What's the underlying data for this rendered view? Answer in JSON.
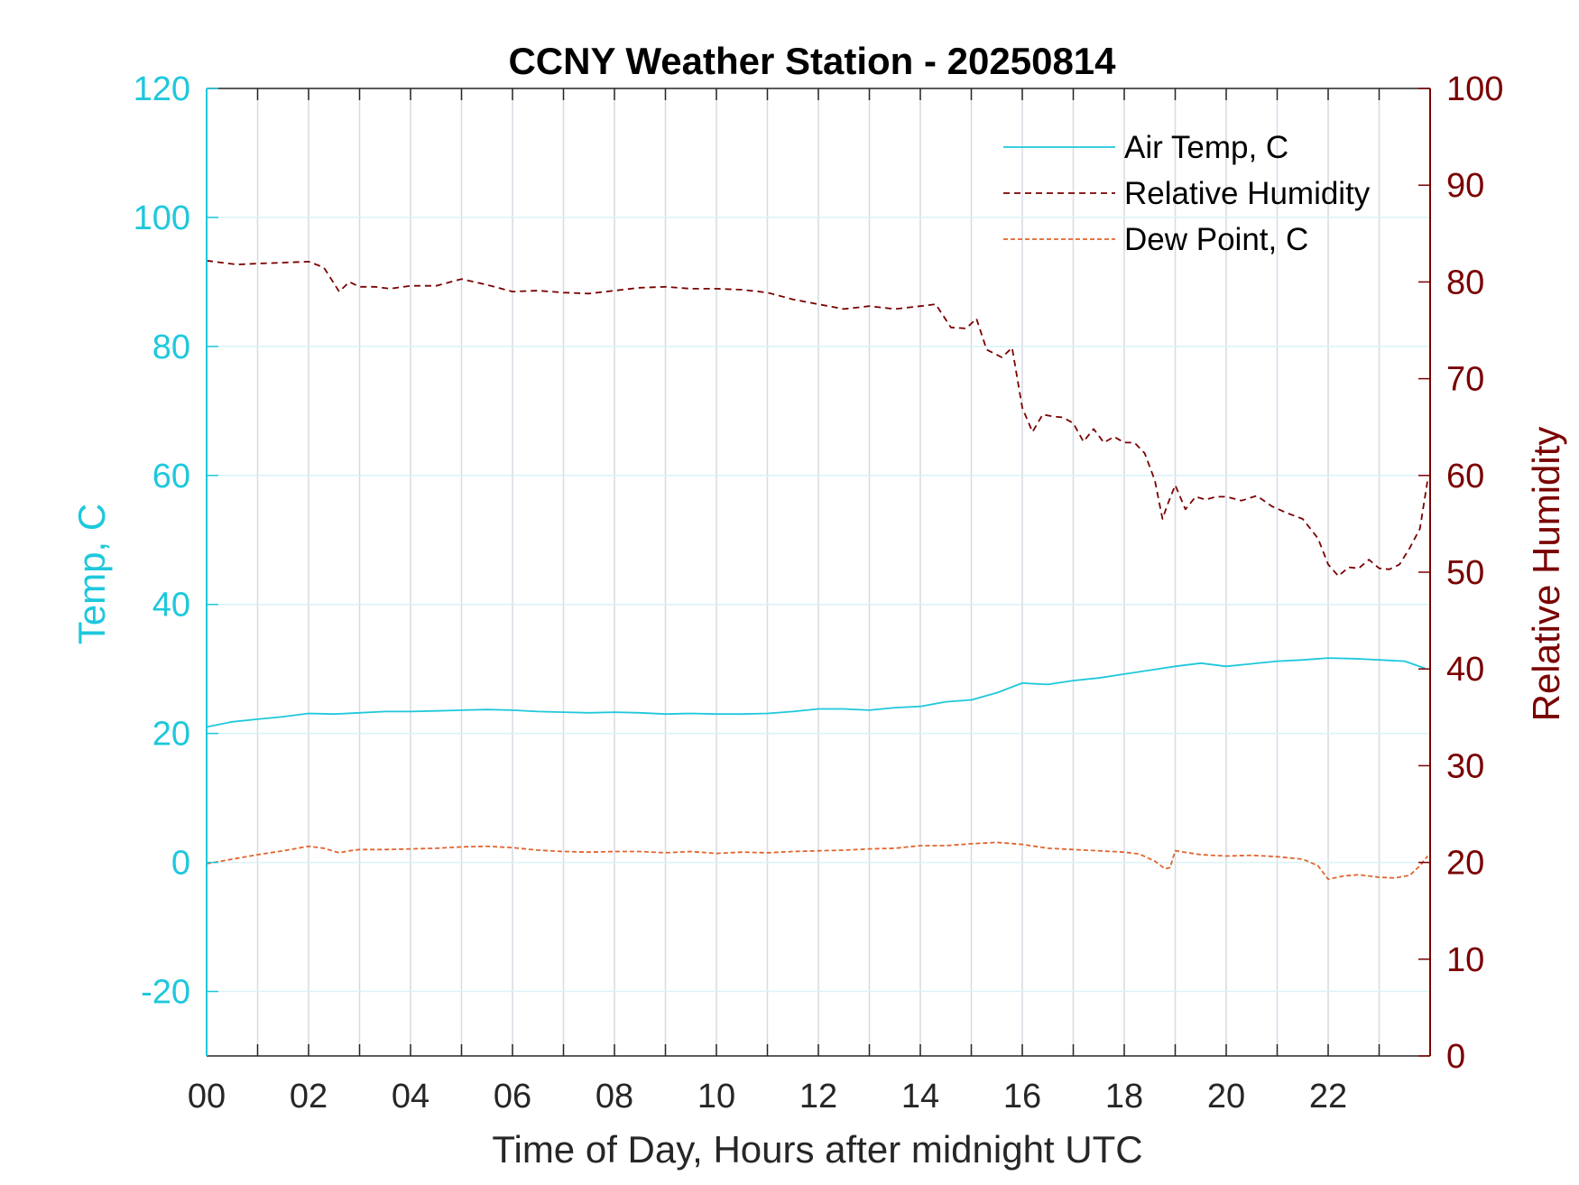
{
  "chart_data": {
    "type": "line",
    "title": "CCNY Weather Station - 20250814",
    "xlabel": "Time of Day, Hours after midnight UTC",
    "ylabel_left": "Temp, C",
    "ylabel_right": "Relative Humidity",
    "xlim": [
      0,
      24
    ],
    "ylim_left": [
      -30,
      120
    ],
    "ylim_right": [
      0,
      100
    ],
    "x_ticks": [
      0,
      2,
      4,
      6,
      8,
      10,
      12,
      14,
      16,
      18,
      20,
      22
    ],
    "x_tick_labels": [
      "00",
      "02",
      "04",
      "06",
      "08",
      "10",
      "12",
      "14",
      "16",
      "18",
      "20",
      "22"
    ],
    "y_left_ticks": [
      -20,
      0,
      20,
      40,
      60,
      80,
      100,
      120
    ],
    "y_left_tick_labels": [
      "-20",
      "0",
      "20",
      "40",
      "60",
      "80",
      "100",
      "120"
    ],
    "y_right_ticks": [
      0,
      10,
      20,
      30,
      40,
      50,
      60,
      70,
      80,
      90,
      100
    ],
    "y_right_tick_labels": [
      "0",
      "10",
      "20",
      "30",
      "40",
      "50",
      "60",
      "70",
      "80",
      "90",
      "100"
    ],
    "grid": true,
    "legend_position": "top-right",
    "colors": {
      "air_temp": "#1ec8dc",
      "humidity": "#7a0000",
      "dew_point": "#e0652e",
      "left_axis": "#1ec8dc",
      "right_axis": "#7a0000"
    },
    "series": [
      {
        "name": "Air Temp, C",
        "axis": "left",
        "x": [
          0,
          0.5,
          1,
          1.5,
          2,
          2.5,
          3,
          3.5,
          4,
          4.5,
          5,
          5.5,
          6,
          6.5,
          7,
          7.5,
          8,
          8.5,
          9,
          9.5,
          10,
          10.5,
          11,
          11.5,
          12,
          12.5,
          13,
          13.5,
          14,
          14.5,
          15,
          15.5,
          16,
          16.5,
          17,
          17.5,
          18,
          18.5,
          19,
          19.5,
          20,
          20.5,
          21,
          21.5,
          22,
          22.5,
          23,
          23.5,
          23.9
        ],
        "y": [
          21.0,
          21.8,
          22.2,
          22.6,
          23.1,
          23.0,
          23.2,
          23.4,
          23.4,
          23.5,
          23.6,
          23.7,
          23.6,
          23.4,
          23.3,
          23.2,
          23.3,
          23.2,
          23.0,
          23.1,
          23.0,
          23.0,
          23.1,
          23.4,
          23.8,
          23.8,
          23.6,
          24.0,
          24.2,
          24.9,
          25.2,
          26.3,
          27.8,
          27.6,
          28.2,
          28.6,
          29.2,
          29.8,
          30.4,
          30.9,
          30.4,
          30.8,
          31.2,
          31.4,
          31.7,
          31.6,
          31.4,
          31.2,
          30.1
        ]
      },
      {
        "name": "Relative Humidity",
        "axis": "right",
        "x": [
          0,
          0.3,
          0.6,
          1,
          1.5,
          2,
          2.3,
          2.6,
          2.8,
          3,
          3.3,
          3.6,
          4,
          4.5,
          5,
          5.5,
          6,
          6.5,
          7,
          7.5,
          8,
          8.5,
          9,
          9.5,
          10,
          10.5,
          11,
          11.5,
          12,
          12.5,
          13,
          13.5,
          14,
          14.3,
          14.6,
          14.9,
          15.1,
          15.3,
          15.6,
          15.8,
          16,
          16.2,
          16.4,
          16.6,
          16.8,
          17,
          17.2,
          17.4,
          17.6,
          17.8,
          18,
          18.2,
          18.4,
          18.6,
          18.75,
          18.85,
          19,
          19.2,
          19.4,
          19.6,
          19.8,
          20,
          20.3,
          20.6,
          20.9,
          21.2,
          21.5,
          21.8,
          22,
          22.2,
          22.4,
          22.6,
          22.8,
          23,
          23.2,
          23.4,
          23.6,
          23.8,
          23.95
        ],
        "y": [
          82.2,
          82.0,
          81.8,
          81.9,
          82.0,
          82.1,
          81.5,
          79.0,
          80.0,
          79.5,
          79.5,
          79.3,
          79.6,
          79.6,
          80.3,
          79.7,
          79.0,
          79.1,
          78.9,
          78.8,
          79.1,
          79.4,
          79.5,
          79.3,
          79.3,
          79.2,
          78.9,
          78.2,
          77.7,
          77.2,
          77.5,
          77.2,
          77.5,
          77.7,
          75.3,
          75.2,
          76.2,
          73.0,
          72.2,
          73.2,
          67.0,
          64.5,
          66.3,
          66.1,
          66.0,
          65.4,
          63.5,
          64.8,
          63.4,
          64.0,
          63.4,
          63.4,
          62.3,
          59.5,
          55.5,
          57.0,
          59.0,
          56.5,
          57.8,
          57.5,
          57.8,
          57.8,
          57.4,
          57.9,
          56.8,
          56.1,
          55.5,
          53.5,
          50.8,
          49.6,
          50.5,
          50.4,
          51.3,
          50.4,
          50.3,
          50.8,
          52.5,
          54.5,
          59.5
        ]
      },
      {
        "name": "Dew Point, C",
        "axis": "left",
        "x": [
          0,
          0.5,
          1,
          1.5,
          2,
          2.3,
          2.6,
          2.8,
          3,
          3.5,
          4,
          4.5,
          5,
          5.5,
          6,
          6.5,
          7,
          7.5,
          8,
          8.5,
          9,
          9.5,
          10,
          10.5,
          11,
          11.5,
          12,
          12.5,
          13,
          13.5,
          14,
          14.5,
          15,
          15.5,
          16,
          16.5,
          17,
          17.5,
          18,
          18.3,
          18.6,
          18.8,
          18.9,
          19,
          19.5,
          20,
          20.5,
          21,
          21.5,
          21.8,
          22,
          22.3,
          22.6,
          23,
          23.3,
          23.6,
          23.8,
          23.95
        ],
        "y": [
          -0.2,
          0.5,
          1.2,
          1.8,
          2.5,
          2.2,
          1.5,
          1.8,
          2.0,
          2.0,
          2.1,
          2.2,
          2.4,
          2.5,
          2.3,
          1.9,
          1.7,
          1.6,
          1.7,
          1.7,
          1.5,
          1.7,
          1.4,
          1.6,
          1.5,
          1.7,
          1.8,
          1.9,
          2.1,
          2.2,
          2.6,
          2.6,
          2.9,
          3.1,
          2.8,
          2.2,
          2.0,
          1.8,
          1.6,
          1.3,
          0.2,
          -1.0,
          -0.8,
          1.8,
          1.2,
          1.0,
          1.1,
          0.9,
          0.5,
          -0.5,
          -2.6,
          -2.1,
          -1.9,
          -2.3,
          -2.4,
          -2.0,
          -0.5,
          1.0
        ]
      }
    ]
  }
}
